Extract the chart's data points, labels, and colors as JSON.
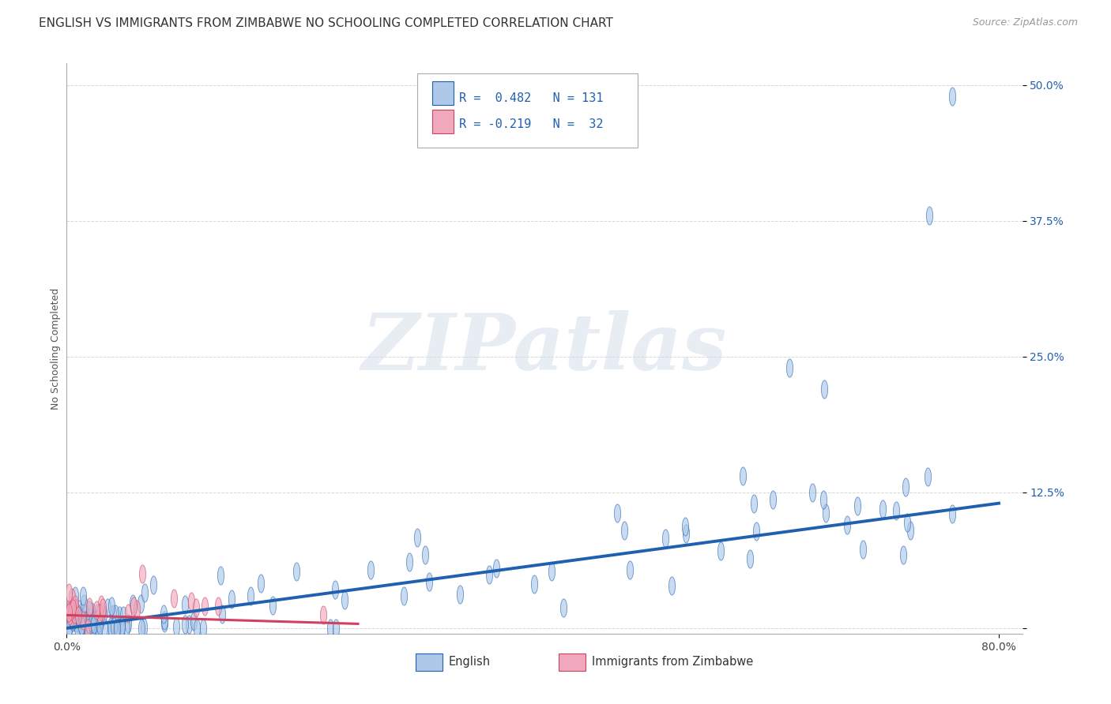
{
  "title": "ENGLISH VS IMMIGRANTS FROM ZIMBABWE NO SCHOOLING COMPLETED CORRELATION CHART",
  "source": "Source: ZipAtlas.com",
  "ylabel": "No Schooling Completed",
  "watermark": "ZIPatlas",
  "xlim": [
    0.0,
    0.82
  ],
  "ylim": [
    -0.005,
    0.52
  ],
  "ytick_positions": [
    0.0,
    0.125,
    0.25,
    0.375,
    0.5
  ],
  "ytick_labels": [
    "",
    "12.5%",
    "25.0%",
    "37.5%",
    "50.0%"
  ],
  "legend_r1": "R =  0.482",
  "legend_n1": "N = 131",
  "legend_r2": "R = -0.219",
  "legend_n2": "N =  32",
  "color_english": "#adc8e8",
  "color_zimb": "#f0a8bc",
  "color_trend_english": "#2060b0",
  "color_trend_zimb": "#d04060",
  "title_fontsize": 11,
  "tick_fontsize": 10,
  "grid_color": "#b0b0b0",
  "background_color": "#ffffff",
  "eng_trend_start_x": 0.0,
  "eng_trend_start_y": 0.0,
  "eng_trend_end_x": 0.8,
  "eng_trend_end_y": 0.115,
  "zimb_trend_start_x": 0.0,
  "zimb_trend_start_y": 0.012,
  "zimb_trend_end_x": 0.25,
  "zimb_trend_end_y": 0.004
}
